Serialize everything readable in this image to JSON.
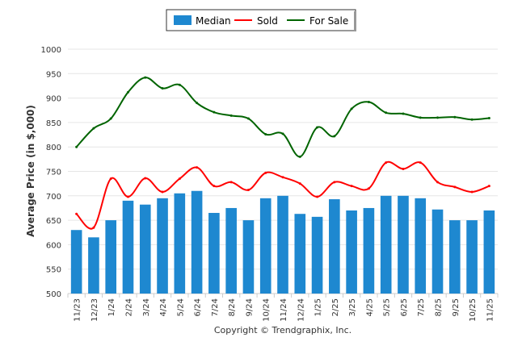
{
  "chart_data": {
    "type": "bar",
    "title": "",
    "xlabel": "",
    "ylabel": "Average Price (in $,000)",
    "ylim": [
      500,
      1000
    ],
    "yticks": [
      500,
      550,
      600,
      650,
      700,
      750,
      800,
      850,
      900,
      950,
      1000
    ],
    "grid": true,
    "legend_position": "top-center",
    "categories": [
      "11/23",
      "12/23",
      "1/24",
      "2/24",
      "3/24",
      "4/24",
      "5/24",
      "6/24",
      "7/24",
      "8/24",
      "9/24",
      "10/24",
      "11/24",
      "12/24",
      "1/25",
      "2/25",
      "3/25",
      "4/25",
      "5/25",
      "6/25",
      "7/25",
      "8/25",
      "9/25",
      "10/25",
      "11/25"
    ],
    "series": [
      {
        "name": "Median",
        "type": "bar",
        "color": "#1e88d0",
        "values": [
          630,
          615,
          650,
          690,
          682,
          695,
          705,
          710,
          665,
          675,
          650,
          695,
          700,
          663,
          657,
          693,
          670,
          675,
          700,
          700,
          695,
          672,
          650,
          650,
          670
        ]
      },
      {
        "name": "Sold",
        "type": "line",
        "color": "#ff0000",
        "values": [
          663,
          635,
          735,
          698,
          736,
          708,
          735,
          758,
          720,
          728,
          712,
          747,
          738,
          725,
          698,
          728,
          720,
          715,
          768,
          755,
          768,
          728,
          718,
          708,
          720
        ]
      },
      {
        "name": "For Sale",
        "type": "line",
        "color": "#006400",
        "values": [
          800,
          838,
          858,
          912,
          942,
          920,
          927,
          890,
          871,
          864,
          858,
          826,
          827,
          780,
          840,
          822,
          878,
          892,
          870,
          868,
          860,
          860,
          861,
          856,
          859
        ]
      }
    ]
  },
  "footer": {
    "copyright": "Copyright © Trendgraphix, Inc."
  }
}
